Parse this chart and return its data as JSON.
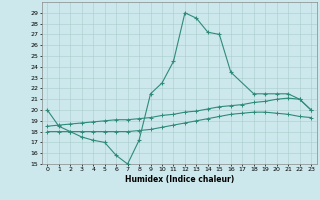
{
  "xlabel": "Humidex (Indice chaleur)",
  "line1_x": [
    0,
    1,
    2,
    3,
    4,
    5,
    6,
    7,
    8,
    9,
    10,
    11,
    12,
    13,
    14,
    15,
    16,
    18,
    19,
    20,
    21,
    22,
    23
  ],
  "line1_y": [
    20,
    18.5,
    18,
    17.5,
    17.2,
    17.0,
    15.8,
    15,
    17.2,
    21.5,
    22.5,
    24.5,
    29,
    28.5,
    27.2,
    27,
    23.5,
    21.5,
    21.5,
    21.5,
    21.5,
    21,
    20
  ],
  "line2_x": [
    0,
    1,
    2,
    3,
    4,
    5,
    6,
    7,
    8,
    9,
    10,
    11,
    12,
    13,
    14,
    15,
    16,
    17,
    18,
    19,
    20,
    21,
    22,
    23
  ],
  "line2_y": [
    18.5,
    18.6,
    18.7,
    18.8,
    18.9,
    19.0,
    19.1,
    19.1,
    19.2,
    19.3,
    19.5,
    19.6,
    19.8,
    19.9,
    20.1,
    20.3,
    20.4,
    20.5,
    20.7,
    20.8,
    21.0,
    21.1,
    21.0,
    20
  ],
  "line3_x": [
    0,
    1,
    2,
    3,
    4,
    5,
    6,
    7,
    8,
    9,
    10,
    11,
    12,
    13,
    14,
    15,
    16,
    17,
    18,
    19,
    20,
    21,
    22,
    23
  ],
  "line3_y": [
    18.0,
    18.0,
    18.0,
    18.0,
    18.0,
    18.0,
    18.0,
    18.0,
    18.1,
    18.2,
    18.4,
    18.6,
    18.8,
    19.0,
    19.2,
    19.4,
    19.6,
    19.7,
    19.8,
    19.8,
    19.7,
    19.6,
    19.4,
    19.3
  ],
  "ylim": [
    15,
    30
  ],
  "xlim_min": -0.5,
  "xlim_max": 23.5,
  "yticks": [
    15,
    16,
    17,
    18,
    19,
    20,
    21,
    22,
    23,
    24,
    25,
    26,
    27,
    28,
    29
  ],
  "xticks": [
    0,
    1,
    2,
    3,
    4,
    5,
    6,
    7,
    8,
    9,
    10,
    11,
    12,
    13,
    14,
    15,
    16,
    17,
    18,
    19,
    20,
    21,
    22,
    23
  ],
  "line_color": "#2e8b7a",
  "bg_color": "#cce8ec",
  "grid_color": "#aacccc"
}
